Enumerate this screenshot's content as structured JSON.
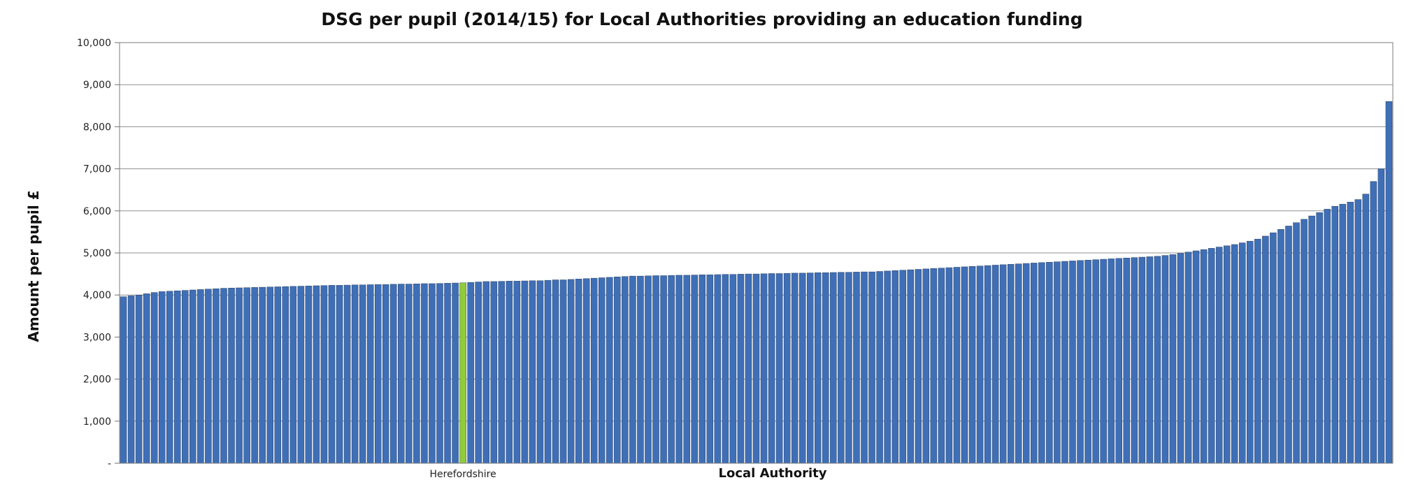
{
  "chart_data": {
    "type": "bar",
    "title": "DSG per pupil (2014/15) for Local Authorities providing an education funding",
    "xlabel": "Local Authority",
    "ylabel": "Amount per pupil £",
    "ylim": [
      0,
      10000
    ],
    "y_ticks": [
      0,
      1000,
      2000,
      3000,
      4000,
      5000,
      6000,
      7000,
      8000,
      9000,
      10000
    ],
    "y_tick_labels": [
      "-",
      "1,000",
      "2,000",
      "3,000",
      "4,000",
      "5,000",
      "6,000",
      "7,000",
      "8,000",
      "9,000",
      "10,000"
    ],
    "grid": true,
    "bar_color": "#3F6FB6",
    "highlight_color": "#8FCB3A",
    "highlight_index": 44,
    "highlight_label": "Herefordshire",
    "values": [
      3960,
      3980,
      4000,
      4030,
      4060,
      4080,
      4090,
      4100,
      4110,
      4120,
      4130,
      4140,
      4150,
      4160,
      4165,
      4170,
      4175,
      4180,
      4185,
      4190,
      4195,
      4200,
      4205,
      4210,
      4215,
      4220,
      4225,
      4230,
      4230,
      4235,
      4240,
      4240,
      4245,
      4250,
      4250,
      4255,
      4260,
      4260,
      4265,
      4270,
      4270,
      4275,
      4280,
      4285,
      4290,
      4300,
      4310,
      4320,
      4320,
      4325,
      4330,
      4330,
      4335,
      4340,
      4340,
      4350,
      4360,
      4360,
      4370,
      4380,
      4390,
      4400,
      4410,
      4420,
      4430,
      4440,
      4450,
      4450,
      4455,
      4460,
      4460,
      4465,
      4470,
      4470,
      4475,
      4480,
      4480,
      4485,
      4490,
      4490,
      4495,
      4500,
      4500,
      4505,
      4510,
      4510,
      4515,
      4520,
      4520,
      4525,
      4530,
      4530,
      4535,
      4540,
      4540,
      4545,
      4550,
      4550,
      4560,
      4570,
      4580,
      4590,
      4600,
      4610,
      4620,
      4630,
      4640,
      4650,
      4660,
      4670,
      4680,
      4690,
      4700,
      4710,
      4720,
      4730,
      4740,
      4750,
      4760,
      4770,
      4780,
      4790,
      4800,
      4810,
      4820,
      4830,
      4840,
      4850,
      4860,
      4870,
      4880,
      4890,
      4900,
      4910,
      4920,
      4940,
      4960,
      4990,
      5020,
      5050,
      5080,
      5110,
      5140,
      5170,
      5200,
      5240,
      5280,
      5330,
      5400,
      5480,
      5560,
      5640,
      5720,
      5800,
      5880,
      5960,
      6040,
      6110,
      6160,
      6210,
      6270,
      6400,
      6700,
      7000,
      8600
    ]
  }
}
